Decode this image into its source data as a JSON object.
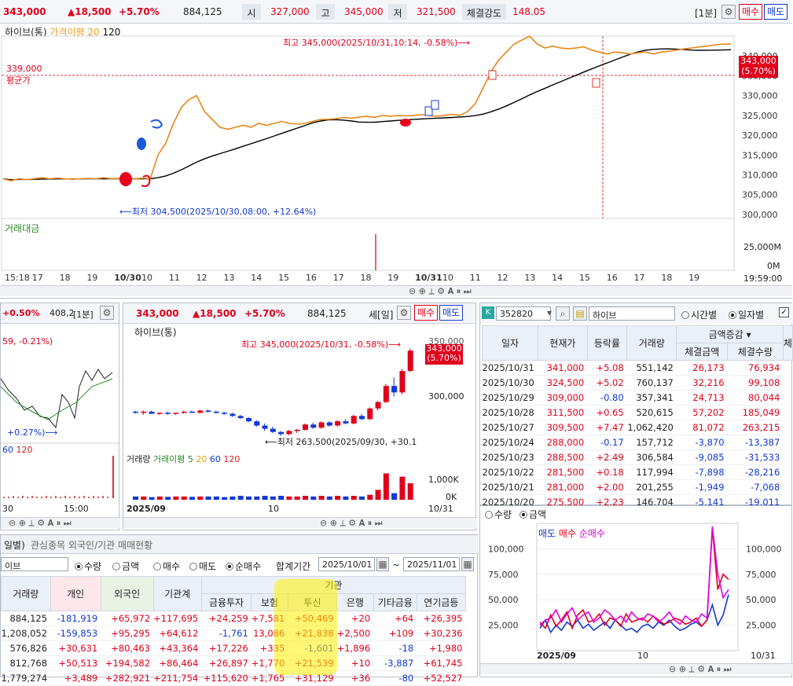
{
  "top": {
    "price": "343,000",
    "change": "▲18,500",
    "pct": "+5.70%",
    "volume": "884,125",
    "open_label": "시",
    "open": "327,000",
    "high_label": "고",
    "high": "345,000",
    "low_label": "저",
    "low": "321,500",
    "strength_label": "체결강도",
    "strength": "148.05",
    "interval": "[1분]",
    "buy": "매수",
    "sell": "매도"
  },
  "main_chart": {
    "legend_name": "하이브(통)",
    "legend_ma": "가격이평 20",
    "legend_120": "120",
    "high_note": "최고 345,000(2025/10/31,10:14, -0.58%)⟶",
    "low_note": "⟵최저 304,500(2025/10/30,08:00, +12.64%)",
    "avg_price": "339,000",
    "avg_label": "평균가",
    "cur_price": "343,000",
    "cur_pct": "(5.70%)",
    "yticks": [
      "340,000",
      "335,000",
      "330,000",
      "325,000",
      "320,000",
      "315,000",
      "310,000",
      "305,000",
      "300,000"
    ],
    "vol_label": "거래대금",
    "vol_ticks": [
      "25,000M",
      "0M"
    ],
    "xticks": [
      "15:18",
      "17",
      "18",
      "19",
      "10/30",
      "10",
      "11",
      "12",
      "13",
      "14",
      "15",
      "16",
      "17",
      "18",
      "19",
      "10/31",
      "10",
      "11",
      "12",
      "13",
      "14",
      "15",
      "16",
      "17",
      "18",
      "19"
    ],
    "time": "19:59:00",
    "series": {
      "close_10_30_to_10_31": [
        309,
        308.5,
        309,
        308.8,
        309,
        309.3,
        309,
        309.2,
        309,
        308.9,
        309,
        309.1,
        309,
        309.3,
        309,
        309.1,
        308.9,
        309,
        309.2,
        309,
        315,
        318,
        323,
        327,
        329,
        330,
        326,
        324,
        322,
        321.5,
        322,
        322.5,
        322,
        323,
        322.5,
        323,
        323.5,
        323,
        322.8,
        323,
        323.5,
        324,
        324,
        324.2,
        324.5,
        324.3,
        324.6,
        324.8,
        324.5,
        325,
        324.8,
        325,
        324.9,
        325,
        325.2,
        325,
        324.8,
        325,
        325.3,
        325,
        326,
        328,
        332,
        336,
        339,
        341,
        343,
        344,
        345,
        343,
        342,
        342.5,
        342,
        341.8,
        342,
        342.3,
        341.5,
        341,
        340.5,
        341,
        340.8,
        340.5,
        340.8,
        341,
        340.5,
        341,
        341.2,
        341.5,
        341.8,
        342,
        342.3,
        342.5,
        342.8,
        343,
        343
      ]
    }
  },
  "left_mid": {
    "pct": "+0.50%",
    "price": "408,2",
    "interval": "[1분]",
    "note1": "59, -0.21%)",
    "note2": "+0.27%)⟶",
    "leg60": "60",
    "leg120": "120",
    "x1": "30",
    "x2": "15:00"
  },
  "mid_daily": {
    "price": "343,000",
    "change": "▲18,500",
    "pct": "+5.70%",
    "volume": "884,125",
    "label_day": "세[일]",
    "buy": "매수",
    "sell": "매도",
    "legend_name": "하이브(통)",
    "high_note": "최고 345,000(2025/10/31, -0.58%)⟶",
    "low_note": "⟵최저 263,500(2025/09/30, +30.1",
    "cur_price": "343,000",
    "cur_pct": "(5.70%)",
    "ytick": "300,000",
    "ytick2": "350,000",
    "vol_legend": "거래량",
    "vol_ma": "거래이평 5",
    "vol_20": "20",
    "vol_60": "60",
    "vol_120": "120",
    "vol_ticks": [
      "1,000K",
      "0K"
    ],
    "xlabel1": "2025/09",
    "xlabel2": "10",
    "xlabel3": "10/31",
    "candles": [
      [
        286,
        287,
        284,
        285
      ],
      [
        285,
        287,
        283,
        286
      ],
      [
        286,
        287,
        284,
        284
      ],
      [
        284,
        285,
        283,
        285
      ],
      [
        285,
        286,
        283,
        284
      ],
      [
        284,
        285,
        283,
        285
      ],
      [
        285,
        287,
        284,
        286
      ],
      [
        286,
        287,
        285,
        285
      ],
      [
        285,
        288,
        284,
        287
      ],
      [
        287,
        288,
        285,
        286
      ],
      [
        286,
        287,
        284,
        285
      ],
      [
        285,
        286,
        283,
        284
      ],
      [
        284,
        285,
        281,
        282
      ],
      [
        282,
        283,
        279,
        280
      ],
      [
        280,
        281,
        276,
        277
      ],
      [
        277,
        278,
        272,
        273
      ],
      [
        273,
        275,
        268,
        270
      ],
      [
        270,
        272,
        266,
        267
      ],
      [
        267,
        268,
        263.5,
        265
      ],
      [
        265,
        269,
        264,
        268
      ],
      [
        268,
        270,
        266,
        269
      ],
      [
        269,
        275,
        268,
        274
      ],
      [
        274,
        276,
        270,
        271
      ],
      [
        271,
        277,
        270,
        276
      ],
      [
        276,
        277,
        272,
        273
      ],
      [
        273,
        278,
        272,
        277
      ],
      [
        277,
        279,
        274,
        275
      ],
      [
        275,
        283,
        274,
        282
      ],
      [
        282,
        284,
        278,
        279
      ],
      [
        279,
        290,
        278,
        289
      ],
      [
        289,
        296,
        287,
        295
      ],
      [
        295,
        312,
        294,
        310
      ],
      [
        310,
        318,
        300,
        304
      ],
      [
        304,
        326,
        302,
        324
      ],
      [
        324,
        345,
        323,
        343
      ]
    ]
  },
  "bottom_left": {
    "tab1": "일별)",
    "tab2": "관심종목 외국인/기관 매매현황",
    "code": "이브",
    "radio_qty": "수량",
    "radio_amt": "금액",
    "radio_buy": "매수",
    "radio_sell": "매도",
    "radio_net": "순매수",
    "period_label": "합계기간",
    "date_from": "2025/10/01",
    "date_to": "2025/11/01",
    "headers": [
      "거래량",
      "개인",
      "외국인",
      "기관계",
      "금융투자",
      "보험",
      "투신",
      "은행",
      "기타금융",
      "연기금등"
    ],
    "group_header": "기관",
    "rows": [
      [
        "884,125",
        "-181,919",
        "+65,972",
        "+117,695",
        "+24,259",
        "+7,581",
        "+50,469",
        "+20",
        "+64",
        "+26,395"
      ],
      [
        "1,208,052",
        "-159,853",
        "+95,295",
        "+64,612",
        "-1,761",
        "13,086",
        "+21,838",
        "+2,500",
        "+109",
        "+30,236"
      ],
      [
        "576,826",
        "+30,631",
        "+80,463",
        "+43,364",
        "+17,226",
        "+335",
        "-1,601",
        "+1,896",
        "-18",
        "+1,980"
      ],
      [
        "812,768",
        "+50,513",
        "+194,582",
        "+86,464",
        "+26,897",
        "+1,770",
        "+21,539",
        "+10",
        "-3,887",
        "+61,745"
      ],
      [
        "1,779,274",
        "+3,489",
        "+282,921",
        "+211,754",
        "+115,620",
        "+1,765",
        "+31,129",
        "+36",
        "-80",
        "+52,527"
      ]
    ]
  },
  "right_table": {
    "code": "352820",
    "name": "하이브",
    "radio_time": "시간별",
    "radio_day": "일자별",
    "dropdown": "금액증감",
    "headers": [
      "일자",
      "현재가",
      "등락률",
      "거래량",
      "체결금액",
      "체결수량",
      "체"
    ],
    "rows": [
      [
        "2025/10/31",
        "341,000",
        "+5.08",
        "551,142",
        "26,173",
        "76,934"
      ],
      [
        "2025/10/30",
        "324,500",
        "+5.02",
        "760,137",
        "32,216",
        "99,108"
      ],
      [
        "2025/10/29",
        "309,000",
        "-0.80",
        "357,341",
        "24,713",
        "80,044"
      ],
      [
        "2025/10/28",
        "311,500",
        "+0.65",
        "520,615",
        "57,202",
        "185,049"
      ],
      [
        "2025/10/27",
        "309,500",
        "+7.47",
        "1,062,420",
        "81,072",
        "263,215"
      ],
      [
        "2025/10/24",
        "288,000",
        "-0.17",
        "157,712",
        "-3,870",
        "-13,387"
      ],
      [
        "2025/10/23",
        "288,500",
        "+2.49",
        "306,584",
        "-9,085",
        "-31,533"
      ],
      [
        "2025/10/22",
        "281,500",
        "+0.18",
        "117,994",
        "-7,898",
        "-28,216"
      ],
      [
        "2025/10/21",
        "281,000",
        "+2.00",
        "201,255",
        "-1,949",
        "-7,068"
      ],
      [
        "2025/10/20",
        "275,500",
        "+2.23",
        "146,704",
        "-5,141",
        "-19,011"
      ]
    ]
  },
  "right_chart": {
    "radio_qty": "수량",
    "radio_amt": "금액",
    "legend": [
      "매도",
      "매수",
      "순매수"
    ],
    "colors": {
      "sell": "#1238d6",
      "buy": "#e0001b",
      "net": "#e000e0"
    },
    "yticks": [
      "100,000",
      "75,000",
      "50,000",
      "25,000"
    ],
    "xlabel1": "2025/09",
    "xlabel2": "10",
    "xlabel3": "10/31",
    "sell": [
      22,
      30,
      18,
      25,
      20,
      28,
      24,
      30,
      22,
      26,
      20,
      24,
      28,
      22,
      30,
      25,
      20,
      22,
      18,
      24,
      26,
      22,
      28,
      25,
      30,
      24,
      20,
      22,
      26,
      28,
      24,
      30,
      45,
      25,
      35,
      55
    ],
    "buy": [
      28,
      22,
      35,
      24,
      30,
      38,
      22,
      35,
      40,
      28,
      30,
      36,
      25,
      32,
      30,
      24,
      36,
      28,
      30,
      32,
      28,
      34,
      30,
      26,
      28,
      32,
      30,
      26,
      28,
      32,
      24,
      30,
      120,
      60,
      75,
      70
    ],
    "net": [
      25,
      30,
      32,
      40,
      28,
      36,
      42,
      30,
      35,
      38,
      28,
      32,
      40,
      36,
      30,
      34,
      28,
      38,
      32,
      30,
      36,
      34,
      28,
      32,
      38,
      30,
      26,
      34,
      30,
      28,
      36,
      32,
      122,
      75,
      52,
      60
    ]
  },
  "toolbar_icons": "⊖ ⊕ ⟂ ⚙ 𝐀 ⏸ ⏭"
}
